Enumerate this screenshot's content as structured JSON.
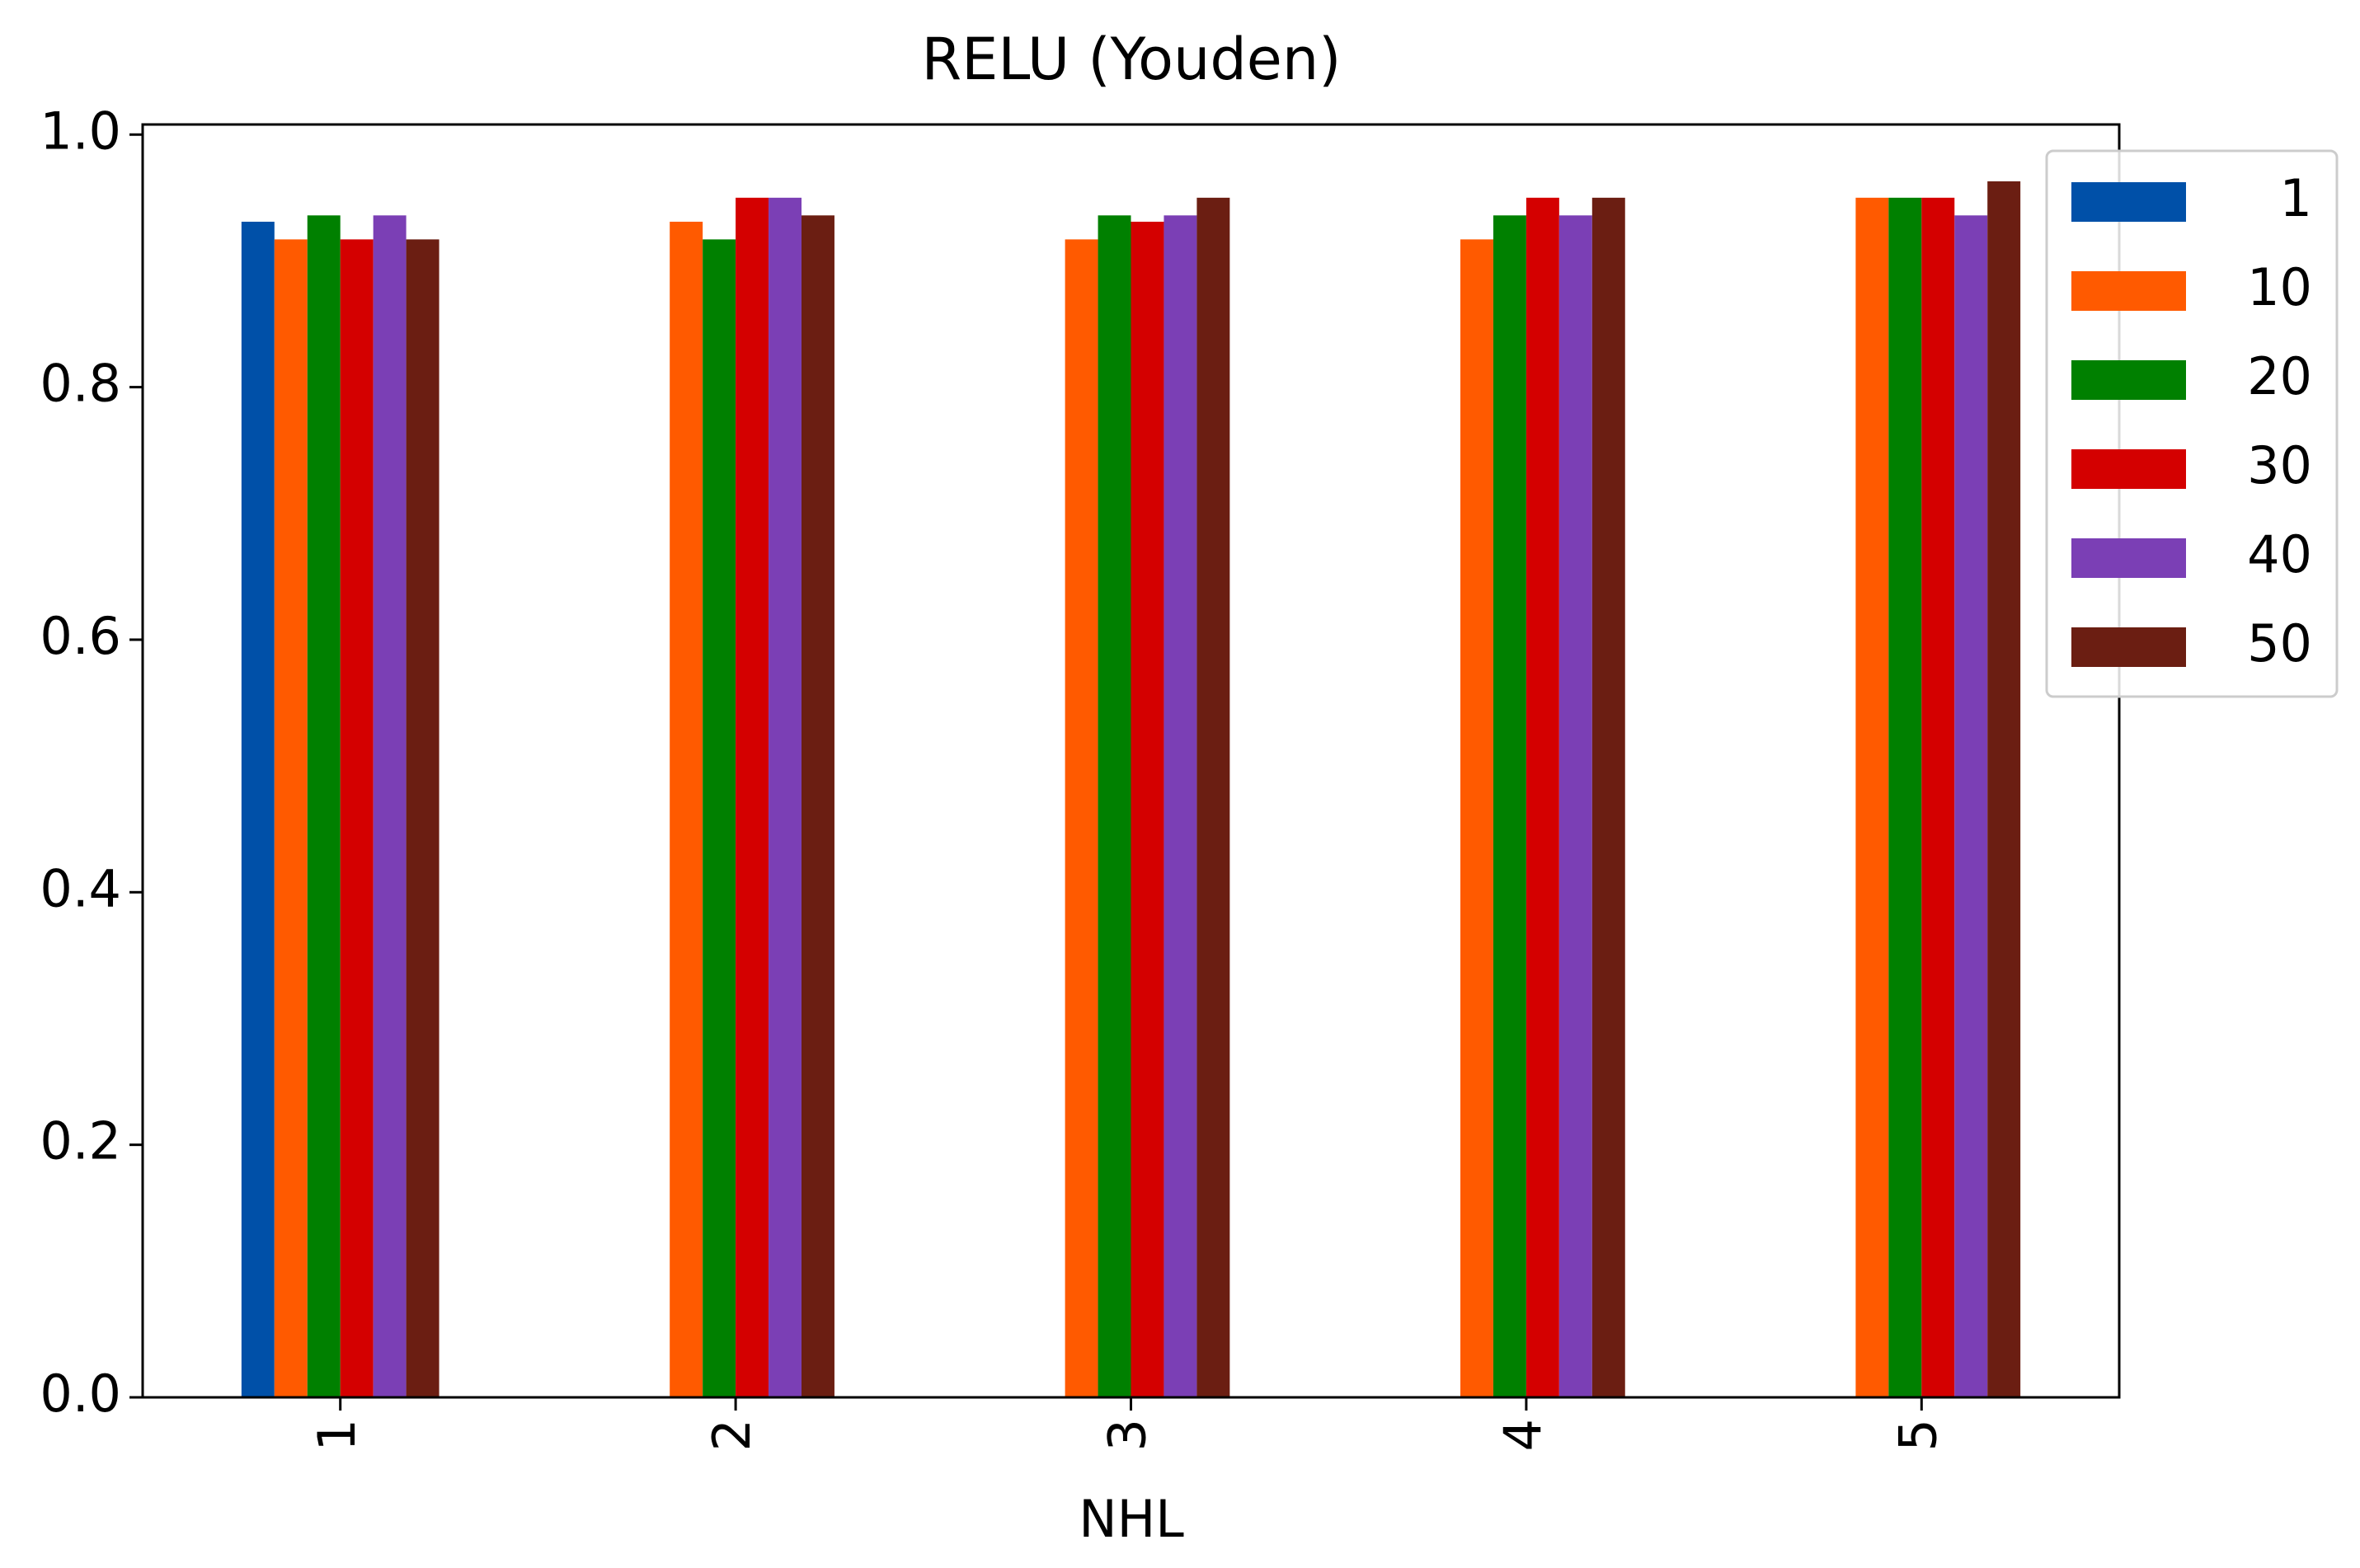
{
  "chart_data": {
    "type": "bar",
    "title": "RELU (Youden)",
    "x_label": "NHL",
    "categories": [
      "1",
      "2",
      "3",
      "4",
      "5"
    ],
    "series": [
      {
        "name": "1",
        "color": "#0050a8",
        "values": [
          0.931,
          null,
          null,
          null,
          null
        ]
      },
      {
        "name": "10",
        "color": "#ff5a00",
        "values": [
          0.917,
          0.931,
          0.917,
          0.917,
          0.95
        ]
      },
      {
        "name": "20",
        "color": "#008000",
        "values": [
          0.936,
          0.917,
          0.936,
          0.936,
          0.95
        ]
      },
      {
        "name": "30",
        "color": "#d40000",
        "values": [
          0.917,
          0.95,
          0.931,
          0.95,
          0.95
        ]
      },
      {
        "name": "40",
        "color": "#7b3fb5",
        "values": [
          0.936,
          0.95,
          0.936,
          0.936,
          0.936
        ]
      },
      {
        "name": "50",
        "color": "#6b1e12",
        "values": [
          0.917,
          0.936,
          0.95,
          0.95,
          0.963
        ]
      }
    ],
    "ylim": [
      0,
      1.008
    ],
    "yticks": [
      {
        "value": 0,
        "label": "0.0"
      },
      0.2,
      0.4,
      0.6,
      0.8,
      {
        "value": 1,
        "label": "1.0"
      }
    ],
    "grid": false,
    "legend": "upper right"
  }
}
